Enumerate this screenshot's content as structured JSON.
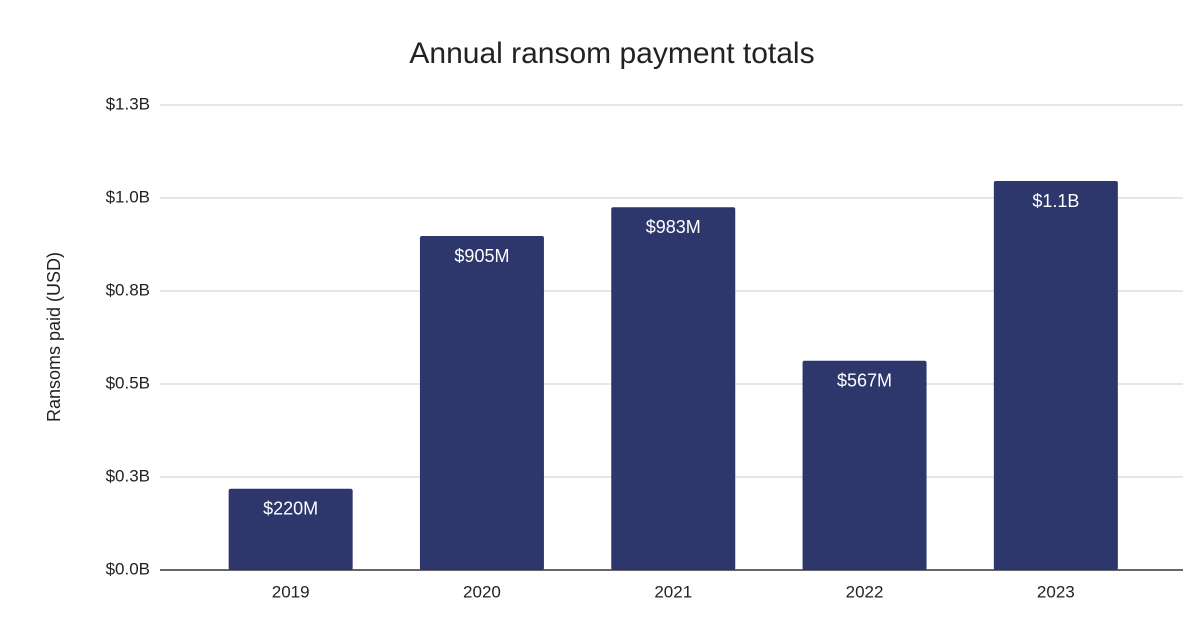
{
  "chart_data": {
    "type": "bar",
    "title": "Annual ransom payment totals",
    "y_label": "Ransoms paid (USD)",
    "categories": [
      "2019",
      "2020",
      "2021",
      "2022",
      "2023"
    ],
    "values": [
      220000000,
      905000000,
      983000000,
      567000000,
      1054000000
    ],
    "value_labels": [
      "$220M",
      "$905M",
      "$983M",
      "$567M",
      "$1.1B"
    ],
    "color": "#2d376c",
    "ylim": [
      0,
      1260000000
    ],
    "yticks": [
      {
        "value": 0,
        "label": "$0.0B"
      },
      {
        "value": 252000000,
        "label": "$0.3B"
      },
      {
        "value": 504000000,
        "label": "$0.5B"
      },
      {
        "value": 756000000,
        "label": "$0.8B"
      },
      {
        "value": 1008000000,
        "label": "$1.0B"
      },
      {
        "value": 1260000000,
        "label": "$1.3B"
      }
    ],
    "grid": true
  }
}
